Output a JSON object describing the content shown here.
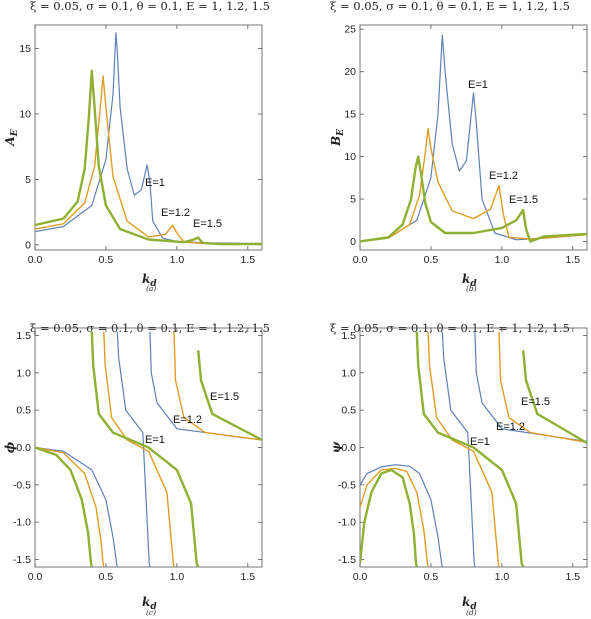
{
  "chart_data": [
    {
      "type": "line",
      "title": "ξ = 0.05, σ = 0.1, θ = 0.1, E = 1, 1.2, 1.5",
      "xlabel": "k_d",
      "ylabel": "A_E",
      "sublabel": "(a)",
      "xlim": [
        0,
        1.6
      ],
      "ylim": [
        -0.4,
        16.8
      ],
      "xticks": [
        "0.0",
        "0.5",
        "1.0",
        "1.5"
      ],
      "yticks": [
        "0",
        "5",
        "10",
        "15"
      ],
      "annotations": [
        "E=1",
        "E=1.2",
        "E=1.5"
      ],
      "series": [
        {
          "name": "E=1",
          "color": "#5e81b5",
          "x": [
            0,
            0.2,
            0.4,
            0.5,
            0.55,
            0.57,
            0.58,
            0.6,
            0.65,
            0.7,
            0.75,
            0.79,
            0.81,
            0.83,
            0.9,
            1.0,
            1.2,
            1.6
          ],
          "y": [
            1.0,
            1.4,
            3.0,
            6.5,
            11.5,
            16.2,
            14.8,
            10.5,
            5.8,
            3.8,
            4.2,
            6.1,
            4.8,
            1.8,
            0.5,
            0.25,
            0.15,
            0.1
          ]
        },
        {
          "name": "E=1.2",
          "color": "#e19c24",
          "x": [
            0,
            0.2,
            0.35,
            0.42,
            0.46,
            0.48,
            0.5,
            0.55,
            0.65,
            0.8,
            0.92,
            0.97,
            1.0,
            1.05,
            1.2,
            1.6
          ],
          "y": [
            1.2,
            1.6,
            3.2,
            6.0,
            10.5,
            12.9,
            10.5,
            5.2,
            1.8,
            0.6,
            0.8,
            1.5,
            0.9,
            0.2,
            0.1,
            0.05
          ]
        },
        {
          "name": "E=1.5",
          "color": "#8fb032",
          "x": [
            0,
            0.2,
            0.3,
            0.35,
            0.38,
            0.4,
            0.42,
            0.45,
            0.5,
            0.6,
            0.8,
            1.05,
            1.12,
            1.15,
            1.18,
            1.3,
            1.6
          ],
          "y": [
            1.5,
            2.0,
            3.3,
            5.8,
            9.8,
            13.3,
            10.5,
            6.0,
            3.0,
            1.2,
            0.4,
            0.2,
            0.4,
            0.55,
            0.15,
            0.05,
            0.05
          ]
        }
      ]
    },
    {
      "type": "line",
      "title": "ξ = 0.05, σ = 0.1, θ = 0.1, E = 1, 1.2, 1.5",
      "xlabel": "k_d",
      "ylabel": "B_E",
      "sublabel": "(b)",
      "xlim": [
        0,
        1.6
      ],
      "ylim": [
        -1,
        25.5
      ],
      "xticks": [
        "0.0",
        "0.5",
        "1.0",
        "1.5"
      ],
      "yticks": [
        "0",
        "5",
        "10",
        "15",
        "20",
        "25"
      ],
      "annotations": [
        "E=1",
        "E=1.2",
        "E=1.5"
      ],
      "series": [
        {
          "name": "E=1",
          "color": "#5e81b5",
          "x": [
            0,
            0.2,
            0.4,
            0.5,
            0.55,
            0.58,
            0.6,
            0.65,
            0.7,
            0.75,
            0.8,
            0.82,
            0.86,
            0.95,
            1.1,
            1.3,
            1.6
          ],
          "y": [
            0,
            0.4,
            2.5,
            7.5,
            15.0,
            24.3,
            20.0,
            11.5,
            8.3,
            9.5,
            17.5,
            14.0,
            5.0,
            1.0,
            0.2,
            0.4,
            0.8
          ]
        },
        {
          "name": "E=1.2",
          "color": "#e19c24",
          "x": [
            0,
            0.2,
            0.35,
            0.42,
            0.46,
            0.48,
            0.5,
            0.55,
            0.65,
            0.8,
            0.92,
            0.98,
            1.01,
            1.05,
            1.2,
            1.6
          ],
          "y": [
            0,
            0.4,
            2.0,
            5.5,
            10.5,
            13.3,
            11.0,
            7.0,
            3.6,
            2.7,
            3.8,
            6.6,
            3.2,
            0.5,
            0.3,
            0.8
          ]
        },
        {
          "name": "E=1.5",
          "color": "#8fb032",
          "x": [
            0,
            0.2,
            0.3,
            0.36,
            0.39,
            0.41,
            0.43,
            0.46,
            0.5,
            0.6,
            0.8,
            1.0,
            1.1,
            1.15,
            1.17,
            1.2,
            1.3,
            1.6
          ],
          "y": [
            0,
            0.5,
            2.0,
            5.0,
            8.5,
            10.0,
            8.0,
            4.5,
            2.3,
            1.0,
            1.0,
            1.6,
            2.5,
            3.7,
            1.5,
            0.0,
            0.6,
            0.9
          ]
        }
      ]
    },
    {
      "type": "line",
      "title": "ξ = 0.05, σ = 0.1, θ = 0.1, E = 1, 1.2, 1.5",
      "xlabel": "k_d",
      "ylabel": "ϕ",
      "sublabel": "(c)",
      "xlim": [
        0,
        1.6
      ],
      "ylim": [
        -1.6,
        1.6
      ],
      "xticks": [
        "0.0",
        "0.5",
        "1.0",
        "1.5"
      ],
      "yticks": [
        "-1.5",
        "-1.0",
        "-0.5",
        "0.0",
        "0.5",
        "1.0",
        "1.5"
      ],
      "annotations": [
        "E=1",
        "E=1.2",
        "E=1.5"
      ],
      "series": [
        {
          "name": "E=1",
          "color": "#5e81b5",
          "x": [
            0,
            0.2,
            0.4,
            0.5,
            0.55,
            0.575,
            0.58,
            0.59,
            0.64,
            0.7,
            0.76,
            0.805,
            0.81,
            0.82,
            0.86,
            1.0,
            1.6
          ],
          "y": [
            0,
            -0.05,
            -0.3,
            -0.7,
            -1.2,
            -1.55,
            1.55,
            1.2,
            0.5,
            0.35,
            0.2,
            -1.55,
            1.55,
            1.0,
            0.6,
            0.25,
            0.1
          ]
        },
        {
          "name": "E=1.2",
          "color": "#e19c24",
          "x": [
            0,
            0.2,
            0.35,
            0.43,
            0.465,
            0.48,
            0.485,
            0.495,
            0.54,
            0.65,
            0.8,
            0.93,
            0.975,
            0.98,
            0.99,
            1.05,
            1.2,
            1.6
          ],
          "y": [
            0,
            -0.07,
            -0.35,
            -0.8,
            -1.25,
            -1.55,
            1.55,
            1.1,
            0.4,
            0.1,
            -0.05,
            -0.6,
            -1.55,
            1.55,
            0.9,
            0.4,
            0.2,
            0.1
          ]
        },
        {
          "name": "E=1.5",
          "color": "#8fb032",
          "x": [
            0,
            0.15,
            0.25,
            0.33,
            0.375,
            0.395,
            0.4,
            0.41,
            0.45,
            0.55,
            0.8,
            1.0,
            1.1,
            1.14,
            1.15,
            1.17,
            1.25,
            1.6
          ],
          "y": [
            0,
            -0.1,
            -0.3,
            -0.7,
            -1.15,
            -1.55,
            1.55,
            1.1,
            0.45,
            0.2,
            0.0,
            -0.3,
            -0.75,
            -1.55,
            1.3,
            0.9,
            0.45,
            0.1
          ]
        }
      ]
    },
    {
      "type": "line",
      "title": "ξ = 0.05, σ = 0.1, θ = 0.1, E = 1, 1.2, 1.5",
      "xlabel": "k_d",
      "ylabel": "ψ",
      "sublabel": "(d)",
      "xlim": [
        0,
        1.6
      ],
      "ylim": [
        -1.6,
        1.6
      ],
      "xticks": [
        "0.0",
        "0.5",
        "1.0",
        "1.5"
      ],
      "yticks": [
        "-1.5",
        "-1.0",
        "-0.5",
        "0.0",
        "0.5",
        "1.0",
        "1.5"
      ],
      "annotations": [
        "E=1",
        "E=1.2",
        "E=1.5"
      ],
      "series": [
        {
          "name": "E=1",
          "color": "#5e81b5",
          "x": [
            0,
            0.05,
            0.15,
            0.25,
            0.35,
            0.42,
            0.5,
            0.55,
            0.575,
            0.58,
            0.59,
            0.64,
            0.7,
            0.76,
            0.805,
            0.81,
            0.82,
            0.86,
            1.0,
            1.6
          ],
          "y": [
            -0.5,
            -0.35,
            -0.26,
            -0.23,
            -0.25,
            -0.35,
            -0.7,
            -1.2,
            -1.55,
            1.55,
            1.2,
            0.5,
            0.35,
            0.2,
            -1.55,
            1.55,
            1.0,
            0.6,
            0.25,
            0.08
          ]
        },
        {
          "name": "E=1.2",
          "color": "#e19c24",
          "x": [
            0,
            0.05,
            0.15,
            0.25,
            0.33,
            0.4,
            0.45,
            0.475,
            0.48,
            0.49,
            0.54,
            0.65,
            0.8,
            0.93,
            0.975,
            0.98,
            0.99,
            1.05,
            1.2,
            1.6
          ],
          "y": [
            -0.8,
            -0.5,
            -0.3,
            -0.28,
            -0.32,
            -0.6,
            -1.1,
            -1.55,
            1.55,
            1.1,
            0.4,
            0.1,
            -0.05,
            -0.6,
            -1.55,
            1.55,
            0.9,
            0.4,
            0.2,
            0.07
          ]
        },
        {
          "name": "E=1.5",
          "color": "#8fb032",
          "x": [
            0,
            0.03,
            0.08,
            0.15,
            0.22,
            0.3,
            0.35,
            0.38,
            0.395,
            0.4,
            0.41,
            0.45,
            0.55,
            0.8,
            1.0,
            1.1,
            1.14,
            1.15,
            1.17,
            1.25,
            1.6
          ],
          "y": [
            -1.55,
            -1.0,
            -0.6,
            -0.35,
            -0.3,
            -0.4,
            -0.75,
            -1.15,
            -1.55,
            1.55,
            1.1,
            0.45,
            0.2,
            0.0,
            -0.3,
            -0.75,
            -1.55,
            1.3,
            0.9,
            0.45,
            0.06
          ]
        }
      ]
    }
  ]
}
